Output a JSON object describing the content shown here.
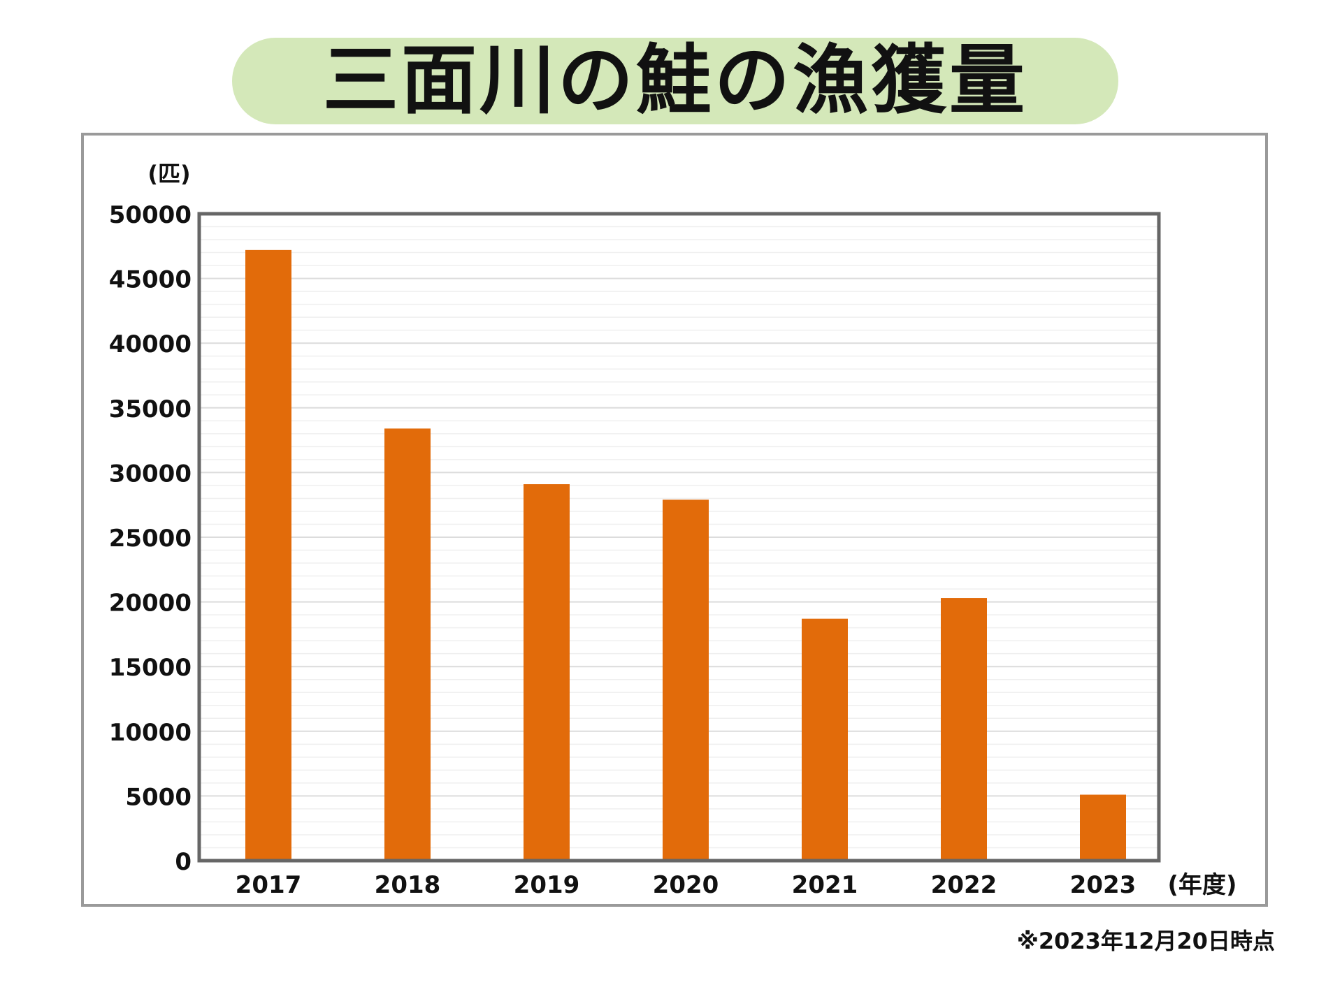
{
  "title": "三面川の鮭の漁獲量",
  "footnote": "※2023年12月20日時点",
  "colors": {
    "bar": "#e26b0a",
    "title_bg": "#d4e8b9",
    "plot_border": "#666666",
    "grid": "#e3e3e3",
    "frame": "#9a9a9a"
  },
  "chart_data": {
    "type": "bar",
    "title": "三面川の鮭の漁獲量",
    "xlabel": "(年度)",
    "ylabel": "(匹)",
    "categories": [
      "2017",
      "2018",
      "2019",
      "2020",
      "2021",
      "2022",
      "2023"
    ],
    "values": [
      47200,
      33400,
      29100,
      27900,
      18700,
      20300,
      5100
    ],
    "ylim": [
      0,
      50000
    ],
    "yticks": [
      "0",
      "5000",
      "10000",
      "15000",
      "20000",
      "25000",
      "30000",
      "35000",
      "40000",
      "45000",
      "50000"
    ],
    "grid": true,
    "legend": "none"
  }
}
